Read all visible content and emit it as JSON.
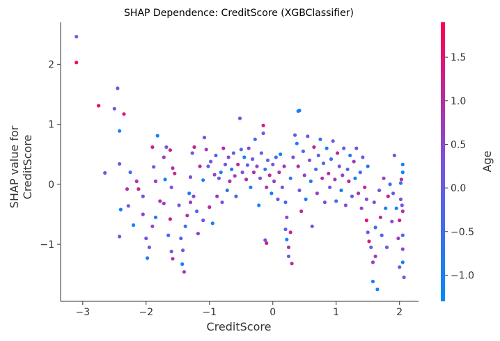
{
  "chart_data": {
    "type": "scatter",
    "title": "SHAP Dependence: CreditScore (XGBClassifier)",
    "xlabel": "CreditScore",
    "ylabel_lines": [
      "SHAP value for",
      "CreditScore"
    ],
    "xlim": [
      -3.35,
      2.3
    ],
    "ylim": [
      -1.95,
      2.7
    ],
    "xticks": [
      -3,
      -2,
      -1,
      0,
      1,
      2
    ],
    "xtick_labels": [
      "−3",
      "−2",
      "−1",
      "0",
      "1",
      "2"
    ],
    "yticks": [
      -1,
      0,
      1,
      2
    ],
    "ytick_labels": [
      "−1",
      "0",
      "1",
      "2"
    ],
    "grid": false,
    "colorbar": {
      "label": "Age",
      "range": [
        -1.3,
        1.9
      ],
      "ticks": [
        -1.0,
        -0.5,
        0.0,
        0.5,
        1.0,
        1.5
      ],
      "tick_labels": [
        "−1.0",
        "−0.5",
        "0.0",
        "0.5",
        "1.0",
        "1.5"
      ],
      "colors": [
        "#008afb",
        "#7a52e0",
        "#ff0052"
      ]
    },
    "series": [
      {
        "points": [
          [
            -3.1,
            2.46,
            0.2
          ],
          [
            -3.1,
            2.03,
            1.7
          ],
          [
            -2.75,
            1.31,
            1.7
          ],
          [
            -2.5,
            1.26,
            0.3
          ],
          [
            -2.45,
            1.6,
            0.0
          ],
          [
            -2.35,
            1.17,
            1.4
          ],
          [
            -2.42,
            0.89,
            -1.1
          ],
          [
            -2.65,
            0.19,
            0.1
          ],
          [
            -2.42,
            0.34,
            0.2
          ],
          [
            -2.4,
            -0.42,
            -1.0
          ],
          [
            -2.3,
            -0.08,
            0.9
          ],
          [
            -2.25,
            0.2,
            -0.5
          ],
          [
            -2.28,
            -0.36,
            0.2
          ],
          [
            -2.2,
            -0.68,
            -1.1
          ],
          [
            -2.12,
            -0.08,
            1.2
          ],
          [
            -2.15,
            0.05,
            0.9
          ],
          [
            -2.42,
            -0.87,
            0.0
          ],
          [
            -2.05,
            -0.5,
            0.6
          ],
          [
            -2.0,
            -0.9,
            0.3
          ],
          [
            -1.95,
            -1.05,
            0.0
          ],
          [
            -1.98,
            -1.23,
            -1.0
          ],
          [
            -2.05,
            -0.2,
            0.3
          ],
          [
            -1.9,
            -0.7,
            0.5
          ],
          [
            -1.82,
            0.81,
            -1.1
          ],
          [
            -1.88,
            0.29,
            0.1
          ],
          [
            -1.9,
            0.62,
            1.3
          ],
          [
            -1.85,
            0.05,
            0.7
          ],
          [
            -1.85,
            -0.55,
            -0.8
          ],
          [
            -1.78,
            -0.28,
            1.0
          ],
          [
            -1.72,
            0.45,
            0.7
          ],
          [
            -1.68,
            0.62,
            0.2
          ],
          [
            -1.62,
            0.57,
            1.3
          ],
          [
            -1.58,
            0.27,
            0.9
          ],
          [
            -1.55,
            0.18,
            1.1
          ],
          [
            -1.6,
            -0.05,
            0.3
          ],
          [
            -1.62,
            -0.58,
            1.2
          ],
          [
            -1.65,
            -0.85,
            -0.5
          ],
          [
            -1.6,
            -1.12,
            0.3
          ],
          [
            -1.58,
            -1.24,
            0.9
          ],
          [
            -1.7,
            0.08,
            -1.0
          ],
          [
            -1.72,
            -0.32,
            0.6
          ],
          [
            -1.48,
            -0.35,
            0.2
          ],
          [
            -1.45,
            -0.9,
            -0.2
          ],
          [
            -1.42,
            -1.1,
            0.0
          ],
          [
            -1.4,
            -1.46,
            0.8
          ],
          [
            -1.43,
            -1.33,
            -1.0
          ],
          [
            -1.38,
            -0.7,
            -0.6
          ],
          [
            -1.35,
            -0.52,
            1.0
          ],
          [
            -1.32,
            -0.15,
            -0.9
          ],
          [
            -1.3,
            0.12,
            0.3
          ],
          [
            -1.3,
            -0.3,
            0.7
          ],
          [
            -1.25,
            -0.2,
            0.4
          ],
          [
            -1.24,
            0.62,
            1.3
          ],
          [
            -1.27,
            0.52,
            0.0
          ],
          [
            -1.2,
            -0.45,
            -0.2
          ],
          [
            -1.18,
            -0.82,
            0.6
          ],
          [
            -1.15,
            0.3,
            1.0
          ],
          [
            -1.1,
            0.07,
            -0.8
          ],
          [
            -1.1,
            -0.6,
            0.2
          ],
          [
            -1.08,
            0.78,
            0.0
          ],
          [
            -1.05,
            0.58,
            0.8
          ],
          [
            -1.02,
            0.3,
            0.0
          ],
          [
            -1.0,
            -0.38,
            1.0
          ],
          [
            -0.98,
            0.38,
            0.1
          ],
          [
            -0.95,
            -0.65,
            -0.8
          ],
          [
            -0.92,
            0.16,
            0.6
          ],
          [
            -0.9,
            0.48,
            -0.2
          ],
          [
            -0.88,
            -0.2,
            0.7
          ],
          [
            -0.85,
            0.1,
            0.0
          ],
          [
            -0.82,
            0.2,
            -0.9
          ],
          [
            -0.8,
            -0.3,
            0.3
          ],
          [
            -0.78,
            0.6,
            1.0
          ],
          [
            -0.75,
            0.33,
            0.2
          ],
          [
            -0.72,
            -0.1,
            -0.6
          ],
          [
            -0.7,
            0.45,
            0.5
          ],
          [
            -0.68,
            0.05,
            1.1
          ],
          [
            -0.65,
            0.25,
            -1.0
          ],
          [
            -0.62,
            0.52,
            0.0
          ],
          [
            -0.6,
            0.14,
            0.7
          ],
          [
            -0.58,
            -0.2,
            -0.3
          ],
          [
            -0.55,
            0.33,
            1.2
          ],
          [
            -0.52,
            1.1,
            0.0
          ],
          [
            -0.5,
            0.58,
            -0.4
          ],
          [
            -0.48,
            0.2,
            0.4
          ],
          [
            -0.45,
            0.45,
            -1.0
          ],
          [
            -0.42,
            0.08,
            0.9
          ],
          [
            -0.4,
            0.32,
            0.0
          ],
          [
            -0.38,
            0.6,
            0.5
          ],
          [
            -0.35,
            -0.05,
            -0.8
          ],
          [
            -0.32,
            0.42,
            0.2
          ],
          [
            -0.3,
            0.2,
            1.0
          ],
          [
            -0.28,
            0.75,
            -0.5
          ],
          [
            -0.25,
            0.3,
            0.6
          ],
          [
            -0.22,
            -0.35,
            -1.0
          ],
          [
            -0.2,
            0.1,
            0.3
          ],
          [
            -0.18,
            0.52,
            0.0
          ],
          [
            -0.15,
            0.98,
            1.4
          ],
          [
            -0.15,
            0.85,
            0.3
          ],
          [
            -0.12,
            0.25,
            -0.7
          ],
          [
            -0.1,
            -0.05,
            0.8
          ],
          [
            -0.1,
            -0.98,
            1.5
          ],
          [
            -0.12,
            -0.93,
            0.0
          ],
          [
            -0.08,
            0.4,
            -0.2
          ],
          [
            -0.05,
            0.15,
            1.1
          ],
          [
            -0.02,
            -0.15,
            -0.9
          ],
          [
            0.0,
            0.33,
            0.2
          ],
          [
            0.02,
            0.05,
            0.6
          ],
          [
            0.05,
            0.45,
            -0.5
          ],
          [
            0.08,
            -0.25,
            0.0
          ],
          [
            0.1,
            0.2,
            1.0
          ],
          [
            0.12,
            0.5,
            -1.0
          ],
          [
            0.15,
            -0.05,
            0.3
          ],
          [
            0.18,
            0.3,
            0.8
          ],
          [
            0.2,
            -0.3,
            -0.3
          ],
          [
            0.22,
            -0.55,
            0.5
          ],
          [
            0.2,
            -0.75,
            0.0
          ],
          [
            0.22,
            -0.92,
            -1.0
          ],
          [
            0.25,
            -1.05,
            0.8
          ],
          [
            0.25,
            -1.2,
            0.2
          ],
          [
            0.28,
            -0.8,
            1.2
          ],
          [
            0.3,
            -1.32,
            1.0
          ],
          [
            0.28,
            0.1,
            -0.6
          ],
          [
            0.32,
            0.45,
            0.4
          ],
          [
            0.35,
            0.82,
            0.0
          ],
          [
            0.38,
            0.68,
            -0.8
          ],
          [
            0.4,
            1.22,
            -1.0
          ],
          [
            0.42,
            1.23,
            -1.1
          ],
          [
            0.4,
            0.3,
            1.0
          ],
          [
            0.42,
            -0.1,
            0.2
          ],
          [
            0.45,
            -0.45,
            1.1
          ],
          [
            0.48,
            0.55,
            -0.3
          ],
          [
            0.5,
            0.15,
            0.7
          ],
          [
            0.52,
            -0.25,
            -0.9
          ],
          [
            0.55,
            0.8,
            0.0
          ],
          [
            0.58,
            0.4,
            0.5
          ],
          [
            0.6,
            0.05,
            -1.0
          ],
          [
            0.62,
            -0.7,
            0.2
          ],
          [
            0.65,
            0.62,
            1.2
          ],
          [
            0.68,
            0.25,
            -0.4
          ],
          [
            0.7,
            -0.15,
            0.6
          ],
          [
            0.72,
            0.48,
            0.0
          ],
          [
            0.75,
            0.75,
            -0.7
          ],
          [
            0.78,
            0.1,
            0.9
          ],
          [
            0.8,
            0.35,
            -0.2
          ],
          [
            0.82,
            -0.3,
            0.4
          ],
          [
            0.85,
            0.6,
            -1.0
          ],
          [
            0.88,
            0.18,
            1.0
          ],
          [
            0.9,
            -0.05,
            0.1
          ],
          [
            0.92,
            0.42,
            -0.5
          ],
          [
            0.95,
            0.72,
            0.0
          ],
          [
            0.98,
            0.08,
            0.8
          ],
          [
            1.0,
            -0.28,
            -0.7
          ],
          [
            1.02,
            0.52,
            1.1
          ],
          [
            1.05,
            0.3,
            0.2
          ],
          [
            1.08,
            -0.1,
            -1.0
          ],
          [
            1.1,
            0.15,
            0.6
          ],
          [
            1.12,
            0.6,
            0.0
          ],
          [
            1.15,
            -0.35,
            0.4
          ],
          [
            1.18,
            0.25,
            -0.3
          ],
          [
            1.2,
            0.05,
            1.2
          ],
          [
            1.22,
            0.48,
            -0.8
          ],
          [
            1.25,
            -0.2,
            0.0
          ],
          [
            1.28,
            0.38,
            0.7
          ],
          [
            1.3,
            0.1,
            -1.0
          ],
          [
            1.32,
            0.6,
            0.2
          ],
          [
            1.35,
            -0.15,
            0.9
          ],
          [
            1.38,
            0.2,
            -0.4
          ],
          [
            1.4,
            -0.4,
            0.5
          ],
          [
            1.42,
            0.45,
            0.0
          ],
          [
            1.45,
            -0.05,
            1.1
          ],
          [
            1.48,
            -0.6,
            1.5
          ],
          [
            1.5,
            -0.8,
            0.0
          ],
          [
            1.5,
            0.3,
            -0.7
          ],
          [
            1.52,
            -0.95,
            1.4
          ],
          [
            1.48,
            -0.25,
            0.3
          ],
          [
            1.55,
            -1.05,
            0.0
          ],
          [
            1.58,
            -1.3,
            0.6
          ],
          [
            1.58,
            -1.62,
            -1.0
          ],
          [
            1.6,
            -0.3,
            0.4
          ],
          [
            1.62,
            -0.72,
            -0.5
          ],
          [
            1.65,
            -1.75,
            -1.1
          ],
          [
            1.62,
            -1.2,
            0.8
          ],
          [
            1.68,
            -0.1,
            0.1
          ],
          [
            1.7,
            -0.55,
            1.0
          ],
          [
            1.72,
            -0.85,
            -0.3
          ],
          [
            1.75,
            0.1,
            0.6
          ],
          [
            1.78,
            -0.4,
            -0.9
          ],
          [
            1.8,
            -1.05,
            0.2
          ],
          [
            1.82,
            -0.2,
            1.2
          ],
          [
            1.85,
            0.0,
            -0.5
          ],
          [
            1.88,
            -0.62,
            0.5
          ],
          [
            1.9,
            -0.15,
            0.0
          ],
          [
            1.92,
            0.48,
            0.2
          ],
          [
            1.95,
            -0.4,
            -1.0
          ],
          [
            1.98,
            -0.9,
            0.7
          ],
          [
            2.0,
            -1.38,
            0.1
          ],
          [
            2.0,
            -0.6,
            1.3
          ],
          [
            2.02,
            0.02,
            -0.7
          ],
          [
            2.02,
            -0.25,
            0.4
          ],
          [
            2.05,
            0.2,
            -1.2
          ],
          [
            2.05,
            -0.45,
            0.8
          ],
          [
            2.05,
            -0.85,
            -0.2
          ],
          [
            2.05,
            -1.08,
            0.5
          ],
          [
            2.05,
            -1.3,
            -1.0
          ],
          [
            2.07,
            -1.55,
            0.3
          ],
          [
            2.05,
            0.33,
            -1.1
          ],
          [
            2.03,
            0.08,
            1.0
          ],
          [
            2.04,
            -0.35,
            0.2
          ]
        ]
      }
    ]
  }
}
